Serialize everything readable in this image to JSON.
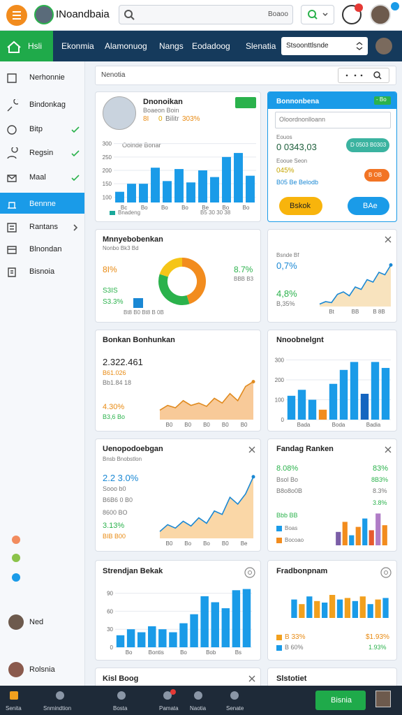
{
  "header": {
    "app_name": "INoandbaia",
    "search_text": "Boaoo"
  },
  "nav": {
    "home": "Hsli",
    "items": [
      "Ekonmia",
      "Alamonuog",
      "Nangs",
      "Eodadoog",
      "Slenatia"
    ],
    "select": "Stsoonttlsnde"
  },
  "sidebar": {
    "items": [
      "Nerhonnie",
      "Bindonkag",
      "Bitp",
      "Regsin",
      "Maal",
      "Bennne",
      "Rantans",
      "Blnondan",
      "Bisnoia"
    ],
    "users": [
      "Ned",
      "Rolsnia"
    ]
  },
  "toolbar": {
    "title": "Nenotia"
  },
  "profile_card": {
    "name": "Dnonoikan",
    "subtitle": "Boaeon Boin",
    "stats": [
      "8I",
      "0",
      "Bilitr",
      "303%"
    ],
    "axis_caption": "Oolnde Bonar",
    "legend": "Bnadeng",
    "footer": "B5 30 30 38",
    "chart": {
      "type": "bar",
      "color": "#1a9be8",
      "ylim": [
        80,
        320
      ],
      "yticks": [
        100,
        150,
        200,
        250,
        300
      ],
      "values": [
        120,
        150,
        150,
        210,
        160,
        205,
        155,
        200,
        175,
        250,
        265,
        180
      ],
      "xlabels": [
        "Bc",
        "Bo",
        "Bo",
        "Bo",
        "Be",
        "Bo",
        "Bo"
      ]
    }
  },
  "form_card": {
    "title": "Bonnonbena",
    "badge": "- Bo",
    "input": "Oloordnonlloann",
    "label": "Eouos",
    "amount": "0 0343,03",
    "pill": "D 0503 B0303",
    "label2": "Eooue Seon",
    "percent": "045%",
    "pill2": "B OB",
    "note": "B05 Be Belodb",
    "button_primary": "Bskok",
    "button_secondary": "BAe"
  },
  "donut_card": {
    "title": "Mnnyebobenkan",
    "subtitle": "Nonbo Bk3 Bd",
    "left": [
      "8I%",
      "S3IS",
      "S3.3%"
    ],
    "right": [
      "8.7%",
      "BBB B3"
    ],
    "footer": "Bt8  B0  Bt8  B 0B",
    "chart": {
      "type": "donut",
      "values": [
        45,
        35,
        20
      ],
      "colors": [
        "#f28c1e",
        "#2bb24c",
        "#f5c518"
      ]
    }
  },
  "trend_card": {
    "lines": [
      "Bsnde Bf",
      "0,7%",
      "4,8%",
      "B,35%"
    ],
    "chart": {
      "type": "area",
      "color": "#1a88d4",
      "fill": "#f5d9a8",
      "ylim": [
        0,
        100
      ],
      "values": [
        5,
        10,
        8,
        25,
        30,
        22,
        40,
        35,
        55,
        50,
        70,
        65,
        85
      ],
      "xlabels": [
        "Bt",
        "BB",
        "B 8B"
      ]
    }
  },
  "sales_card": {
    "title": "Bonkan Bonhunkan",
    "total": "2.322.461",
    "lines": [
      "B61.026",
      "Bb1.84 18",
      "4.30%",
      "B3,6 Bo"
    ],
    "chart": {
      "type": "area",
      "color": "#e08a1e",
      "fill": "#f5b877",
      "ylim": [
        0,
        100
      ],
      "values": [
        20,
        30,
        25,
        40,
        30,
        35,
        28,
        45,
        35,
        55,
        40,
        70,
        80
      ],
      "xlabels": [
        "B0",
        "B0",
        "B0",
        "B0",
        "B0"
      ]
    }
  },
  "bar_card": {
    "title": "Nnoobnelgnt",
    "chart": {
      "type": "bar",
      "ylim": [
        0,
        330
      ],
      "yticks": [
        0,
        100,
        200,
        300
      ],
      "values": [
        120,
        150,
        100,
        50,
        180,
        250,
        290,
        130,
        290,
        260
      ],
      "colors": [
        "#1a9be8",
        "#1a9be8",
        "#1a9be8",
        "#f28c1e",
        "#1a9be8",
        "#1a9be8",
        "#1a9be8",
        "#1565c0",
        "#1a9be8",
        "#1a9be8"
      ],
      "xlabels": [
        "Bada",
        "Boda",
        "Badia"
      ]
    }
  },
  "growth_card": {
    "title": "Uenopodoebgan",
    "subtitle": "Bnsb Bnobstlon",
    "headline": "2.2 3.0%",
    "lines": [
      "Sooo b0",
      "B6B6 0 B0",
      "8600 BO",
      "3.13%",
      "BIB B00"
    ],
    "chart": {
      "type": "area",
      "color": "#1a88d4",
      "fill": "#f8c98a",
      "ylim": [
        0,
        100
      ],
      "values": [
        10,
        20,
        15,
        25,
        18,
        30,
        22,
        40,
        35,
        60,
        50,
        65,
        90
      ],
      "xlabels": [
        "B0",
        "Bo",
        "Bo",
        "B0",
        "Be"
      ]
    }
  },
  "ranking_card": {
    "title": "Fandag Ranken",
    "left": [
      "8.08%",
      "Bsol Bo",
      "B8o8o0B",
      "Bbb BB"
    ],
    "right": [
      "83%",
      "8B3%",
      "8.3%",
      "3.8%"
    ],
    "legend": [
      "Boas",
      "Bocoao"
    ],
    "chart": {
      "type": "bar",
      "ylim": [
        0,
        100
      ],
      "values": [
        40,
        70,
        30,
        55,
        80,
        45,
        95,
        60
      ],
      "colors": [
        "#7b5ea7",
        "#f28c1e",
        "#1a9be8",
        "#f28c1e",
        "#1a9be8",
        "#e65a2e",
        "#b07cc6",
        "#f28c1e"
      ]
    }
  },
  "stack_card": {
    "title": "Strendjan Bekak",
    "chart": {
      "type": "bar",
      "color": "#1a9be8",
      "ylim": [
        0,
        100
      ],
      "yticks": [
        0,
        30,
        60,
        90
      ],
      "values": [
        20,
        30,
        25,
        35,
        30,
        25,
        40,
        55,
        85,
        75,
        65,
        95,
        97
      ],
      "xlabels": [
        "Bo",
        "Bontis",
        "Bo",
        "Bob",
        "Bs"
      ]
    }
  },
  "mix_card": {
    "title": "Fradbonpnam",
    "left": [
      "B 33%",
      "B 60%"
    ],
    "right": [
      "$1.93%",
      "1.93%"
    ],
    "chart": {
      "type": "bar",
      "ylim": [
        0,
        100
      ],
      "values": [
        60,
        45,
        70,
        55,
        50,
        75,
        60,
        65,
        55,
        70,
        45,
        60,
        65
      ],
      "colors": [
        "#1a9be8",
        "#f2a01e",
        "#1a9be8",
        "#f2a01e",
        "#1a9be8",
        "#f2a01e",
        "#1a9be8",
        "#f2a01e",
        "#1a9be8",
        "#f2a01e",
        "#1a9be8",
        "#f2a01e",
        "#1a9be8"
      ]
    }
  },
  "row6": [
    "Kisl Boog",
    "Slstotiet"
  ],
  "bottom_nav": {
    "items": [
      "Senita",
      "Snmindtion",
      "Bosta",
      "Pamata",
      "Naotia",
      "Senate"
    ],
    "button": "Bisnia"
  }
}
